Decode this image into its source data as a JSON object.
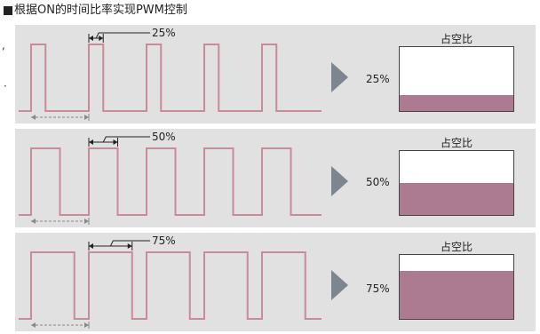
{
  "page_title": "根据ON的时间比率实现PWM控制",
  "side_marks": [
    ",",
    "·"
  ],
  "colors": {
    "panel_bg": "#e1e1e1",
    "wave": "#c88b97",
    "fill": "#ac7a91",
    "arrow": "#7d8590",
    "marker_line": "#222222",
    "dashed": "#888888"
  },
  "panels": [
    {
      "duty_label": "25%",
      "duty_fraction": 0.25,
      "gauge_title": "占空比",
      "gauge_value": "25%"
    },
    {
      "duty_label": "50%",
      "duty_fraction": 0.5,
      "gauge_title": "占空比",
      "gauge_value": "50%"
    },
    {
      "duty_label": "75%",
      "duty_fraction": 0.75,
      "gauge_title": "占空比",
      "gauge_value": "75%"
    }
  ]
}
